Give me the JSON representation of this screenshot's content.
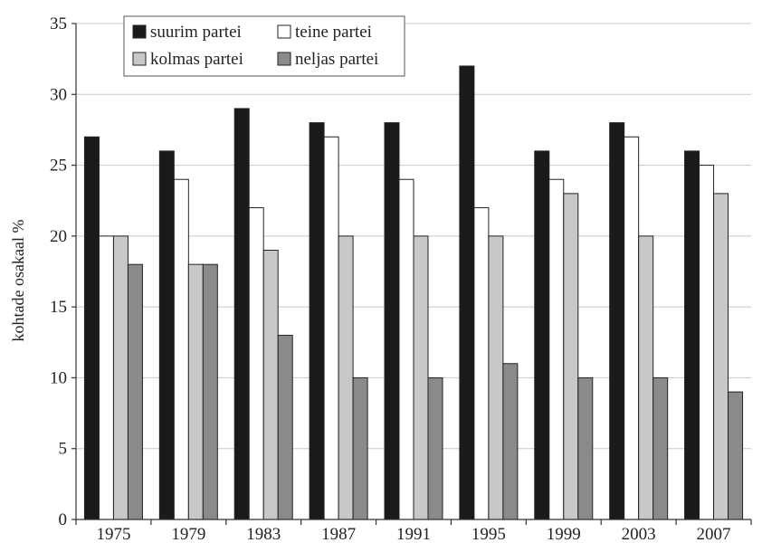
{
  "chart_data": {
    "type": "bar",
    "title": "",
    "xlabel": "",
    "ylabel": "kohtade osakaal %",
    "ylim": [
      0,
      35
    ],
    "yticks": [
      "0",
      "5",
      "10",
      "15",
      "20",
      "25",
      "30",
      "35"
    ],
    "categories": [
      "1975",
      "1979",
      "1983",
      "1987",
      "1991",
      "1995",
      "1999",
      "2003",
      "2007"
    ],
    "grid": true,
    "legend_position": "top-left",
    "series": [
      {
        "name": "suurim partei",
        "color": "#1a1a1a",
        "values": [
          27,
          26,
          29,
          28,
          28,
          32,
          26,
          28,
          26
        ]
      },
      {
        "name": "teine partei",
        "color": "#ffffff",
        "values": [
          20,
          24,
          22,
          27,
          24,
          22,
          24,
          27,
          25
        ]
      },
      {
        "name": "kolmas partei",
        "color": "#c8c8c8",
        "values": [
          20,
          18,
          19,
          20,
          20,
          20,
          23,
          20,
          23
        ]
      },
      {
        "name": "neljas partei",
        "color": "#8a8a8a",
        "values": [
          18,
          18,
          13,
          10,
          10,
          11,
          10,
          10,
          9
        ]
      }
    ]
  }
}
